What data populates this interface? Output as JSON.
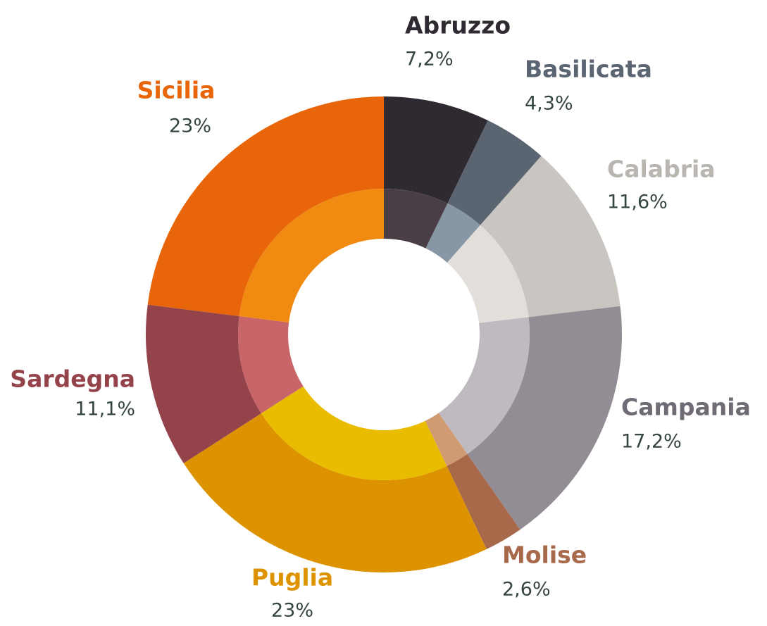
{
  "chart_data": {
    "type": "donut",
    "categories": [
      "Abruzzo",
      "Basilicata",
      "Calabria",
      "Campania",
      "Molise",
      "Puglia",
      "Sardegna",
      "Sicilia"
    ],
    "values": [
      7.2,
      4.3,
      11.6,
      17.2,
      2.6,
      23,
      11.1,
      23
    ],
    "value_labels": [
      "7,2%",
      "4,3%",
      "11,6%",
      "17,2%",
      "2,6%",
      "23%",
      "11,1%",
      "23%"
    ],
    "colors": [
      "#2f2a31",
      "#5b6571",
      "#c9c6c1",
      "#928d94",
      "#a8694b",
      "#dd9300",
      "#94434b",
      "#e8650a"
    ],
    "inner_colors": [
      "#4a3f46",
      "#8797a5",
      "#e2dfdb",
      "#bfbabf",
      "#d09b72",
      "#eabc00",
      "#c76568",
      "#f08a10"
    ],
    "label_colors": [
      "#2f2a31",
      "#5b6571",
      "#b9b6b2",
      "#6f6a74",
      "#a8694b",
      "#dd9300",
      "#94434b",
      "#e8650a"
    ]
  }
}
